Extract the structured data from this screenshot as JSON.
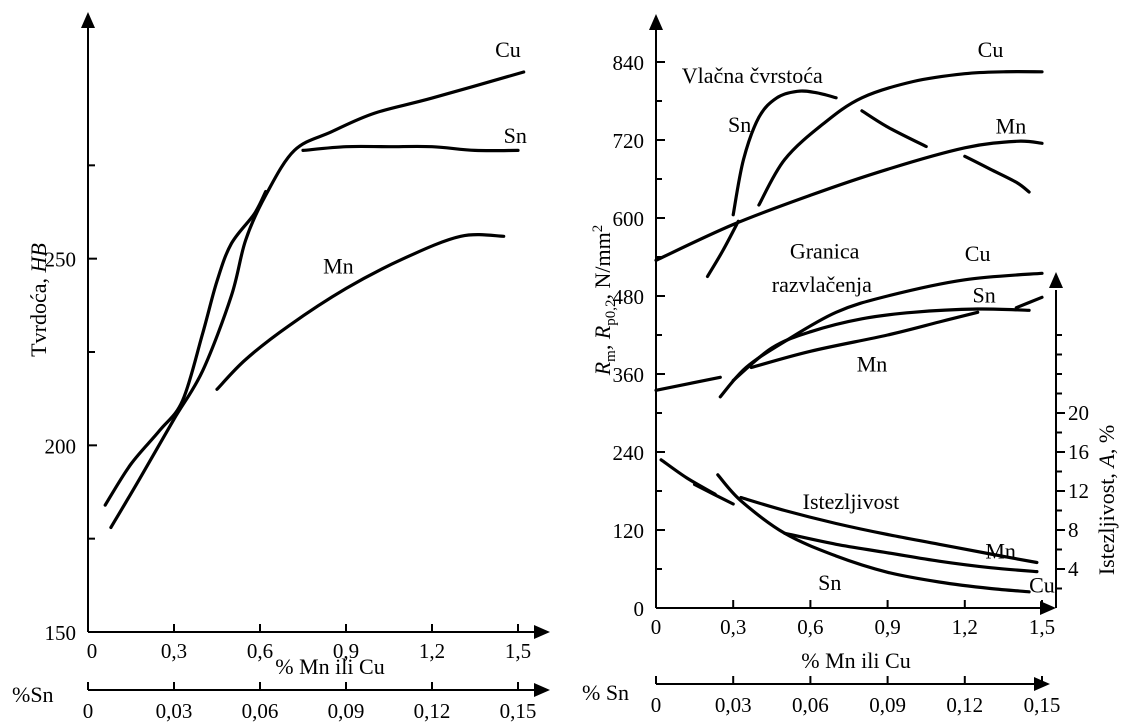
{
  "chart_data": [
    {
      "type": "line",
      "ylabel_text": "Tvrdoća, ",
      "ylabel_italic": "HB",
      "xlabel": "% Mn ili Cu",
      "x2label": "%Sn",
      "xlim": [
        0,
        1.5
      ],
      "ylim": [
        150,
        300
      ],
      "x_ticks": [
        0,
        0.3,
        0.6,
        0.9,
        1.2,
        1.5
      ],
      "x_tick_labels": [
        "0",
        "0,3",
        "0,6",
        "0,9",
        "1,2",
        "1,5"
      ],
      "x2_ticks": [
        0,
        0.3,
        0.6,
        0.9,
        1.2,
        1.5
      ],
      "x2_tick_labels": [
        "0",
        "0,03",
        "0,06",
        "0,09",
        "0,12",
        "0,15"
      ],
      "y_ticks": [
        150,
        200,
        250
      ],
      "y_tick_labels": [
        "150",
        "200",
        "250"
      ],
      "series": [
        {
          "name": "Cu",
          "x": [
            0.08,
            0.18,
            0.3,
            0.4,
            0.5,
            0.55,
            0.62,
            0.72,
            0.85,
            1.0,
            1.2,
            1.52
          ],
          "y": [
            178,
            191,
            207,
            220,
            240,
            255,
            267,
            279,
            284,
            289,
            293,
            300
          ]
        },
        {
          "name": "Sn",
          "x": [
            0.06,
            0.15,
            0.25,
            0.33,
            0.4,
            0.45,
            0.5,
            0.58,
            0.62
          ],
          "y": [
            184,
            195,
            204,
            212,
            230,
            244,
            254,
            262,
            268
          ]
        },
        {
          "name": "Sn",
          "x": [
            0.75,
            0.9,
            1.05,
            1.2,
            1.35,
            1.5
          ],
          "y": [
            279,
            280,
            280,
            280,
            279,
            279
          ]
        },
        {
          "name": "Mn",
          "x": [
            0.45,
            0.55,
            0.7,
            0.9,
            1.1,
            1.3,
            1.45
          ],
          "y": [
            215,
            223,
            232,
            242,
            250,
            256,
            256
          ]
        }
      ],
      "annotations": [
        {
          "text": "Cu",
          "x": 1.42,
          "y": 304
        },
        {
          "text": "Sn",
          "x": 1.45,
          "y": 281
        },
        {
          "text": "Mn",
          "x": 0.82,
          "y": 246
        }
      ]
    },
    {
      "type": "line",
      "ylabel_parts": [
        "R",
        "m",
        ", R",
        "p0,2",
        ", N/mm",
        "2"
      ],
      "y2label_text": "Istezljivost, ",
      "y2label_italic": "A",
      "y2label_suffix": ", %",
      "xlabel": "% Mn ili Cu",
      "x2label": "% Sn",
      "xlim": [
        0,
        1.5
      ],
      "ylim": [
        0,
        840
      ],
      "x_ticks": [
        0,
        0.3,
        0.6,
        0.9,
        1.2,
        1.5
      ],
      "x_tick_labels": [
        "0",
        "0,3",
        "0,6",
        "0,9",
        "1,2",
        "1,5"
      ],
      "x2_ticks": [
        0,
        0.3,
        0.6,
        0.9,
        1.2,
        1.5
      ],
      "x2_tick_labels": [
        "0",
        "0,03",
        "0,06",
        "0,09",
        "0,12",
        "0,15"
      ],
      "y_ticks": [
        0,
        120,
        240,
        360,
        480,
        600,
        720,
        840
      ],
      "y_tick_labels": [
        "0",
        "120",
        "240",
        "360",
        "480",
        "600",
        "720",
        "840"
      ],
      "y2_ticks": [
        4,
        8,
        12,
        16,
        20
      ],
      "y2_tick_labels": [
        "4",
        "8",
        "12",
        "16",
        "20"
      ],
      "y2lim": [
        0,
        32
      ],
      "series": [
        {
          "name": "Sn",
          "group": "Vlačna čvrstoća",
          "x": [
            0.3,
            0.34,
            0.4,
            0.47,
            0.55,
            0.62,
            0.7
          ],
          "y": [
            605,
            690,
            755,
            785,
            795,
            793,
            785
          ]
        },
        {
          "name": "Sn",
          "group": "Vlačna čvrstoća",
          "x": [
            0.2,
            0.26,
            0.32
          ],
          "y": [
            510,
            550,
            595
          ]
        },
        {
          "name": "Sn",
          "group": "Vlačna čvrstoća",
          "x": [
            0.8,
            0.9,
            1.05
          ],
          "y": [
            765,
            740,
            710
          ]
        },
        {
          "name": "Sn",
          "group": "Vlačna čvrstoća",
          "x": [
            1.2,
            1.3,
            1.4,
            1.45
          ],
          "y": [
            695,
            675,
            655,
            640
          ]
        },
        {
          "name": "Cu",
          "group": "Vlačna čvrstoća",
          "x": [
            0.4,
            0.5,
            0.65,
            0.8,
            1.0,
            1.2,
            1.35,
            1.5
          ],
          "y": [
            620,
            690,
            745,
            785,
            810,
            822,
            825,
            825
          ]
        },
        {
          "name": "Mn",
          "group": "Vlačna čvrstoća",
          "x": [
            0.0,
            0.3,
            0.6,
            0.9,
            1.2,
            1.4,
            1.5
          ],
          "y": [
            535,
            590,
            635,
            675,
            708,
            718,
            715
          ]
        },
        {
          "name": "Cu",
          "group": "Granica razvlačenja",
          "x": [
            0.25,
            0.35,
            0.5,
            0.7,
            0.9,
            1.2,
            1.5
          ],
          "y": [
            325,
            370,
            410,
            455,
            480,
            505,
            515
          ]
        },
        {
          "name": "Sn",
          "group": "Granica razvlačenja",
          "x": [
            0.3,
            0.45,
            0.6,
            0.8,
            1.0,
            1.25,
            1.45
          ],
          "y": [
            350,
            400,
            425,
            445,
            455,
            460,
            458
          ]
        },
        {
          "name": "Sn",
          "group": "Granica razvlačenja",
          "x": [
            1.4,
            1.5
          ],
          "y": [
            462,
            478
          ]
        },
        {
          "name": "Mn",
          "group": "Granica razvlačenja",
          "x": [
            0.0,
            0.25
          ],
          "y": [
            335,
            355
          ]
        },
        {
          "name": "Mn",
          "group": "Granica razvlačenja",
          "x": [
            0.37,
            0.6,
            0.9,
            1.1,
            1.25
          ],
          "y": [
            370,
            395,
            420,
            440,
            455
          ]
        },
        {
          "name": "Mn",
          "group": "Istezljivost",
          "x": [
            0.33,
            0.5,
            0.7,
            0.9,
            1.1,
            1.3,
            1.48
          ],
          "y": [
            170,
            150,
            130,
            113,
            98,
            83,
            70
          ]
        },
        {
          "name": "Cu",
          "group": "Istezljivost",
          "x": [
            0.5,
            0.7,
            0.9,
            1.1,
            1.3,
            1.48
          ],
          "y": [
            115,
            98,
            85,
            72,
            62,
            56
          ]
        },
        {
          "name": "Sn",
          "group": "Istezljivost",
          "x": [
            0.24,
            0.33,
            0.5,
            0.7,
            0.9,
            1.1,
            1.3,
            1.45
          ],
          "y": [
            205,
            165,
            115,
            80,
            55,
            40,
            30,
            25
          ]
        },
        {
          "name": "",
          "group": "Istezljivost",
          "x": [
            0.02,
            0.12,
            0.23
          ],
          "y": [
            228,
            200,
            175
          ]
        },
        {
          "name": "",
          "group": "Istezljivost",
          "x": [
            0.15,
            0.3
          ],
          "y": [
            190,
            160
          ]
        }
      ],
      "annotations": [
        {
          "text": "Vlačna čvrstoća",
          "x": 0.1,
          "y": 808
        },
        {
          "text": "Sn",
          "x": 0.28,
          "y": 732
        },
        {
          "text": "Cu",
          "x": 1.25,
          "y": 848
        },
        {
          "text": "Mn",
          "x": 1.32,
          "y": 730
        },
        {
          "text": "Granica",
          "x": 0.52,
          "y": 538
        },
        {
          "text": "razvlačenja",
          "x": 0.45,
          "y": 486
        },
        {
          "text": "Cu",
          "x": 1.2,
          "y": 534
        },
        {
          "text": "Sn",
          "x": 1.23,
          "y": 470
        },
        {
          "text": "Mn",
          "x": 0.78,
          "y": 364
        },
        {
          "text": "Istezljivost",
          "x": 0.57,
          "y": 152
        },
        {
          "text": "Mn",
          "x": 1.28,
          "y": 76
        },
        {
          "text": "Cu",
          "x": 1.45,
          "y": 24
        },
        {
          "text": "Sn",
          "x": 0.63,
          "y": 28
        }
      ]
    }
  ]
}
